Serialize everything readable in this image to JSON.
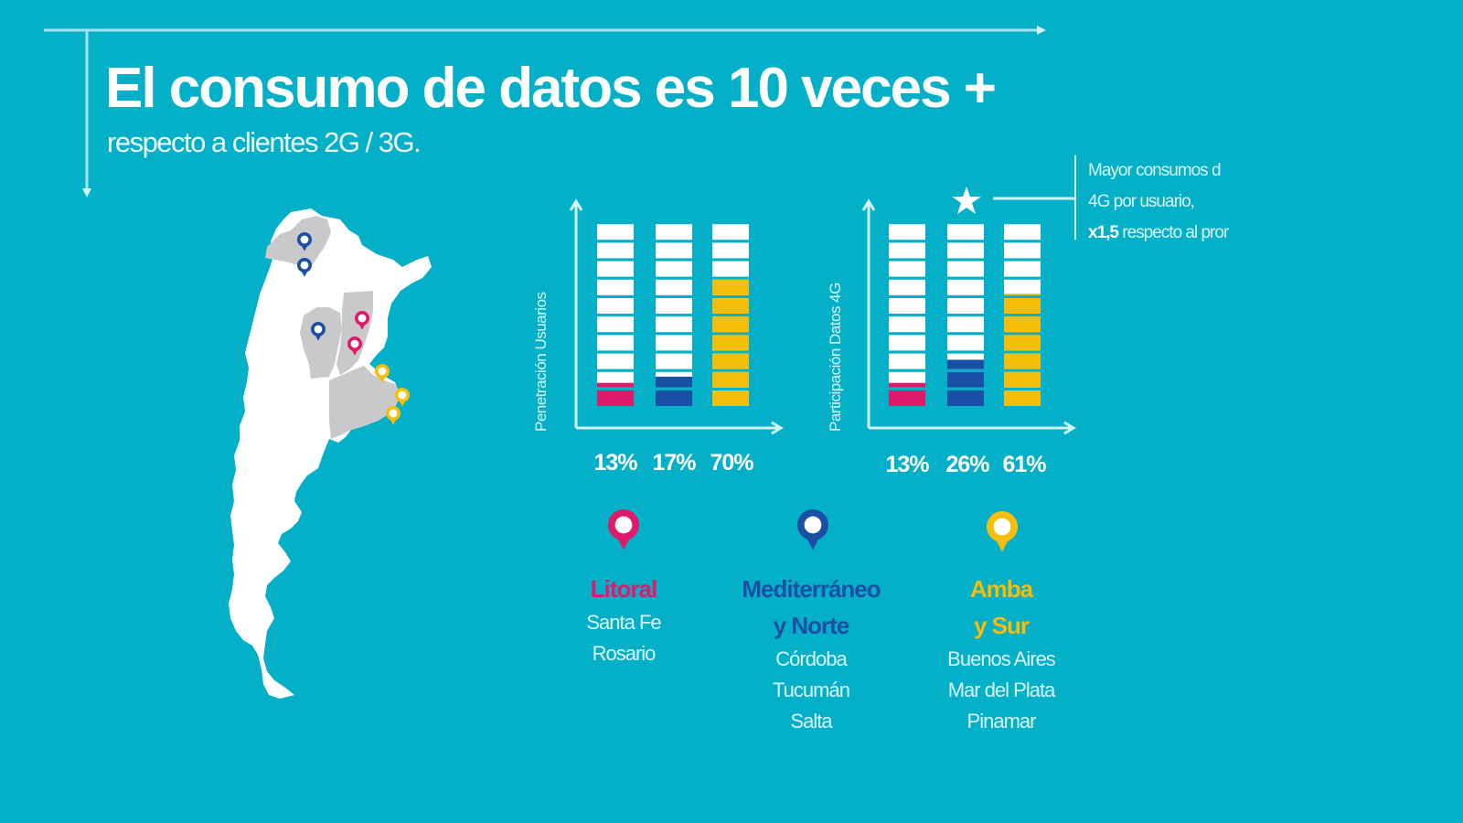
{
  "header": {
    "title": "El consumo de datos es 10 veces +",
    "subtitle": "respecto a clientes 2G / 3G."
  },
  "annotation": {
    "line1": "Mayor consumos d",
    "line2": "4G por usuario,",
    "line3_bold": "x1,5",
    "line3_rest": " respecto al pror",
    "icon": "star-icon"
  },
  "colors": {
    "background": "#04B0C8",
    "litoral": "#E0196A",
    "mediterraneo": "#1A4FA6",
    "amba": "#F5BE0B",
    "segment_empty": "#FFFFFF",
    "map_land": "#FFFFFF",
    "map_highlight": "#C9C9CC"
  },
  "chart_data": [
    {
      "type": "bar",
      "title": "",
      "ylabel": "Penetración Usuarios",
      "xlabel": "",
      "categories": [
        "Litoral",
        "Mediterráneo y Norte",
        "Amba y Sur"
      ],
      "values": [
        13,
        17,
        70
      ],
      "value_labels": [
        "13%",
        "17%",
        "70%"
      ],
      "segments_total": 10,
      "ylim": [
        0,
        100
      ],
      "grid": false
    },
    {
      "type": "bar",
      "title": "",
      "ylabel": "Participación Datos 4G",
      "xlabel": "",
      "categories": [
        "Litoral",
        "Mediterráneo y Norte",
        "Amba y Sur"
      ],
      "values": [
        13,
        26,
        61
      ],
      "value_labels": [
        "13%",
        "26%",
        "61%"
      ],
      "segments_total": 10,
      "ylim": [
        0,
        100
      ],
      "grid": false,
      "highlight_category": "Mediterráneo y Norte"
    }
  ],
  "legend": [
    {
      "icon": "map-pin-icon",
      "color": "#E0196A",
      "title_lines": [
        "Litoral"
      ],
      "cities": [
        "Santa Fe",
        "Rosario"
      ]
    },
    {
      "icon": "map-pin-icon",
      "color": "#1A4FA6",
      "title_lines": [
        "Mediterráneo",
        "y Norte"
      ],
      "cities": [
        "Córdoba",
        "Tucumán",
        "Salta"
      ]
    },
    {
      "icon": "map-pin-icon",
      "color": "#F5BE0B",
      "title_lines": [
        "Amba",
        "y Sur"
      ],
      "cities": [
        "Buenos Aires",
        "Mar del Plata",
        "Pinamar"
      ]
    }
  ],
  "map": {
    "name": "Argentina",
    "pins": [
      {
        "region": "Mediterráneo y Norte",
        "city": "Salta"
      },
      {
        "region": "Mediterráneo y Norte",
        "city": "Tucumán"
      },
      {
        "region": "Mediterráneo y Norte",
        "city": "Córdoba"
      },
      {
        "region": "Litoral",
        "city": "Santa Fe"
      },
      {
        "region": "Litoral",
        "city": "Rosario"
      },
      {
        "region": "Amba y Sur",
        "city": "Buenos Aires"
      },
      {
        "region": "Amba y Sur",
        "city": "Mar del Plata"
      },
      {
        "region": "Amba y Sur",
        "city": "Pinamar"
      }
    ]
  }
}
